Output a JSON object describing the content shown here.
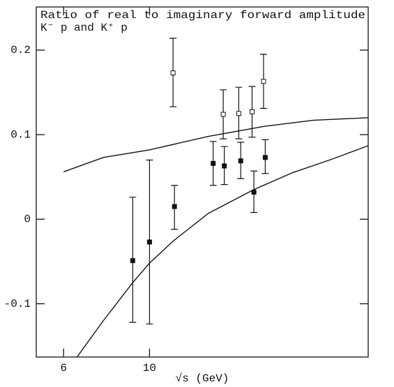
{
  "chart_data": {
    "type": "scatter",
    "title": "Ratio of real to imaginary forward amplitude",
    "subtitle": "K⁻ p    and    K⁺ p",
    "x_label": "√s  (GeV)",
    "x_scale": "log",
    "xlim": [
      5.1,
      36.7
    ],
    "xticks": [
      6,
      10
    ],
    "ylim": [
      -0.163,
      0.251
    ],
    "yticks": [
      0.2,
      0.1,
      0,
      -0.1
    ],
    "color": "#111111",
    "series": [
      {
        "marker": "open-square",
        "color": "#111111",
        "x": [
          11.5,
          15.5,
          17.0,
          18.4,
          19.7
        ],
        "values": [
          0.173,
          0.124,
          0.125,
          0.127,
          0.163
        ],
        "lower": [
          0.133,
          0.095,
          0.095,
          0.097,
          0.131
        ],
        "upper": [
          0.214,
          0.153,
          0.156,
          0.157,
          0.195
        ]
      },
      {
        "marker": "filled-square",
        "color": "#111111",
        "x": [
          9.05,
          10.0,
          11.6,
          14.6,
          15.6,
          17.2,
          18.6,
          19.9
        ],
        "values": [
          -0.049,
          -0.027,
          0.015,
          0.066,
          0.063,
          0.069,
          0.032,
          0.073
        ],
        "lower": [
          -0.122,
          -0.124,
          -0.012,
          0.04,
          0.041,
          0.048,
          0.008,
          0.054
        ],
        "upper": [
          0.026,
          0.07,
          0.04,
          0.092,
          0.086,
          0.091,
          0.057,
          0.094
        ]
      }
    ],
    "curves": [
      {
        "color": "#111111",
        "x": [
          6.0,
          7.6,
          10.0,
          14.2,
          19.9,
          26.5,
          36.7
        ],
        "values": [
          0.056,
          0.073,
          0.082,
          0.098,
          0.11,
          0.117,
          0.12
        ]
      },
      {
        "color": "#111111",
        "x": [
          6.5,
          7.6,
          9.05,
          10.0,
          11.5,
          14.2,
          18.6,
          23.4,
          29.6,
          36.7
        ],
        "values": [
          -0.163,
          -0.12,
          -0.075,
          -0.052,
          -0.026,
          0.007,
          0.035,
          0.055,
          0.071,
          0.087
        ]
      }
    ]
  }
}
